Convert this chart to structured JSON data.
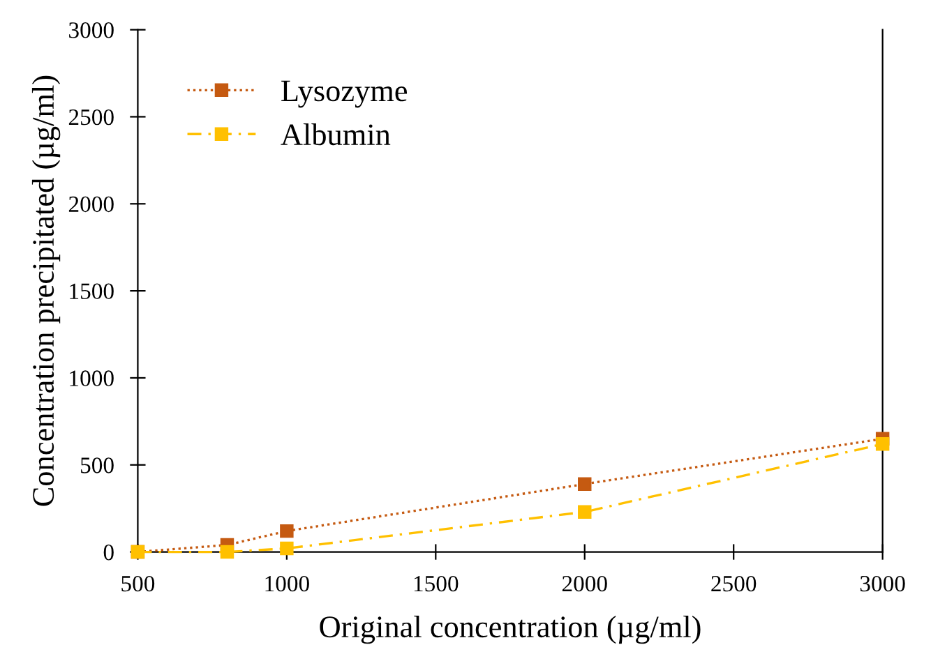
{
  "chart_data": {
    "type": "line",
    "xlabel": "Original concentration (µg/ml)",
    "ylabel": "Concentration precipitated (µg/ml)",
    "x": [
      500,
      800,
      1000,
      2000,
      3000
    ],
    "series": [
      {
        "name": "Lysozyme",
        "color": "#c55a11",
        "line_style": "dotted",
        "values": [
          0,
          40,
          120,
          390,
          650
        ]
      },
      {
        "name": "Albumin",
        "color": "#ffc000",
        "line_style": "dashed",
        "values": [
          0,
          0,
          20,
          230,
          620
        ]
      }
    ],
    "xlim": [
      500,
      3000
    ],
    "xticks": [
      500,
      1000,
      1500,
      2000,
      2500,
      3000
    ],
    "ylim": [
      0,
      3000
    ],
    "yticks": [
      0,
      500,
      1000,
      1500,
      2000,
      2500,
      3000
    ],
    "marker": "square",
    "grid": false,
    "legend": "top left"
  }
}
